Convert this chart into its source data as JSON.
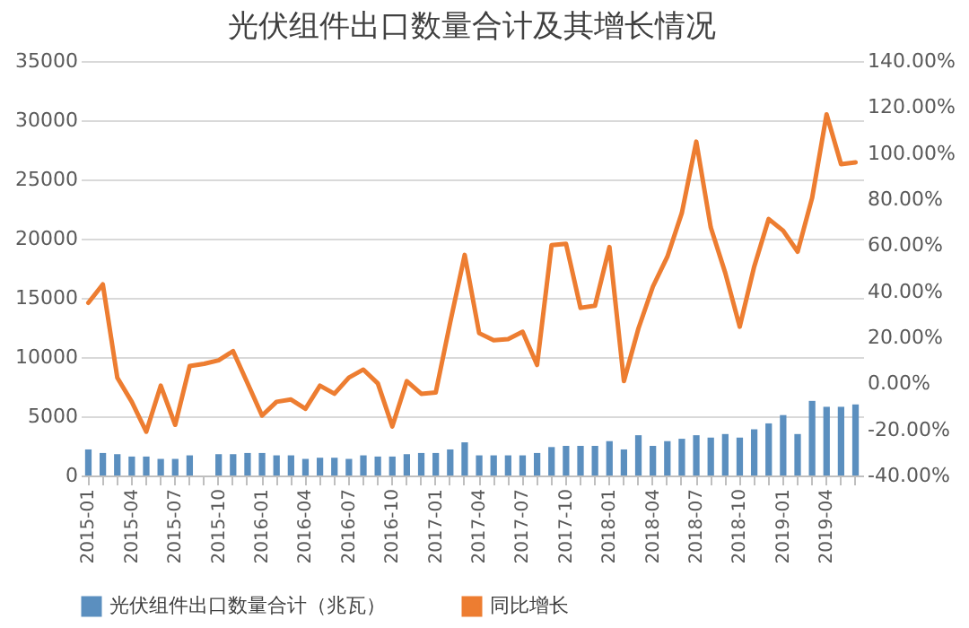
{
  "chart_data": {
    "type": "bar",
    "title": "光伏组件出口数量合计及其增长情况",
    "categories": [
      "2015-01",
      null,
      null,
      "2015-04",
      null,
      null,
      "2015-07",
      null,
      null,
      "2015-10",
      null,
      null,
      "2016-01",
      null,
      null,
      "2016-04",
      null,
      null,
      "2016-07",
      null,
      null,
      "2016-10",
      null,
      null,
      "2017-01",
      null,
      null,
      "2017-04",
      null,
      null,
      "2017-07",
      null,
      null,
      "2017-10",
      null,
      null,
      "2018-01",
      null,
      null,
      "2018-04",
      null,
      null,
      "2018-07",
      null,
      null,
      "2018-10",
      null,
      null,
      "2019-01",
      null,
      null,
      "2019-04",
      null,
      null
    ],
    "series": [
      {
        "name": "光伏组件出口数量合计（兆瓦）",
        "color": "#5b8fbf",
        "values": [
          2200,
          1900,
          1800,
          1600,
          1600,
          1400,
          1400,
          1700,
          null,
          1800,
          1800,
          1900,
          1900,
          1700,
          1700,
          1400,
          1500,
          1500,
          1400,
          1700,
          1600,
          1600,
          1800,
          1900,
          1900,
          2200,
          2800,
          1700,
          1700,
          1700,
          1700,
          1900,
          2400,
          2500,
          2500,
          2500,
          2900,
          2200,
          3400,
          2500,
          2900,
          3100,
          3400,
          3200,
          3500,
          3200,
          3900,
          4400,
          5100,
          3500,
          6300,
          5800,
          5800,
          6000
        ]
      },
      {
        "name": "同比增长",
        "type": "line",
        "axis": "y2",
        "color": "#ed7d31",
        "values": [
          35,
          43,
          2.5,
          -8,
          -21,
          -1,
          -18,
          7.5,
          8.5,
          10,
          14,
          0,
          -14,
          -8,
          -7,
          -11,
          -1,
          -4.5,
          2.5,
          6,
          0,
          -18.7,
          1,
          -4.5,
          -4,
          26.5,
          55.8,
          21.8,
          18.7,
          19.2,
          22.4,
          8,
          60,
          60.6,
          32.8,
          33.7,
          59.2,
          1,
          23.8,
          42,
          55,
          74,
          105,
          67.7,
          48,
          24.6,
          50.7,
          71.4,
          66.3,
          57.2,
          80.5,
          116.8,
          95.2,
          96
        ]
      }
    ],
    "ylim": [
      0,
      35000
    ],
    "yticks": [
      0,
      5000,
      10000,
      15000,
      20000,
      25000,
      30000,
      35000
    ],
    "y2lim": [
      -40,
      140
    ],
    "y2ticks": [
      {
        "value": -40,
        "label": "-40.00%"
      },
      {
        "value": -20,
        "label": "-20.00%"
      },
      {
        "value": 0,
        "label": "0.00%"
      },
      {
        "value": 20,
        "label": "20.00%"
      },
      {
        "value": 40,
        "label": "40.00%"
      },
      {
        "value": 60,
        "label": "60.00%"
      },
      {
        "value": 80,
        "label": "80.00%"
      },
      {
        "value": 100,
        "label": "100.00%"
      },
      {
        "value": 120,
        "label": "120.00%"
      },
      {
        "value": 140,
        "label": "140.00%"
      }
    ],
    "grid": "y",
    "legend": "bottom",
    "marker": "none",
    "line_style": "solid"
  }
}
